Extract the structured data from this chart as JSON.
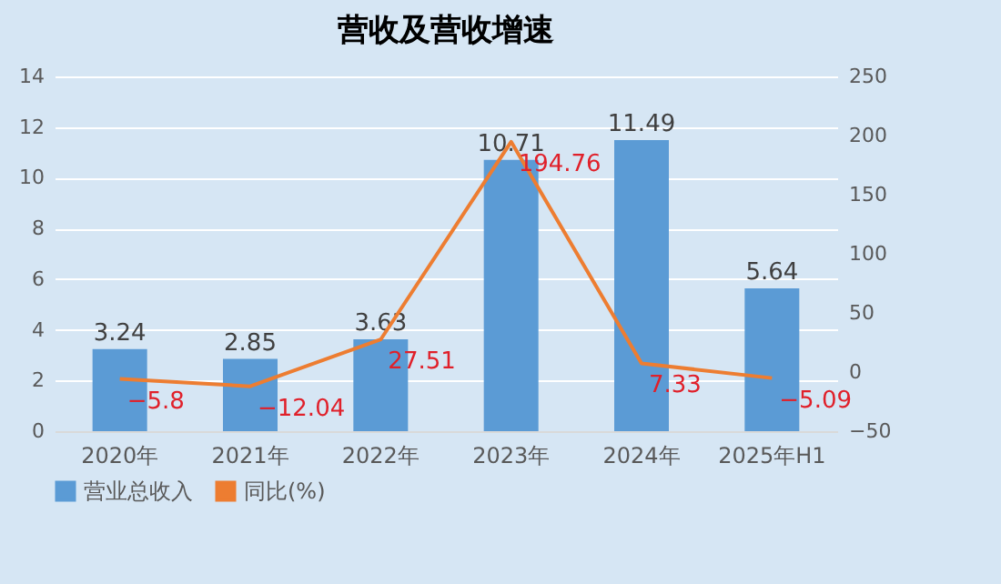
{
  "chart_data": {
    "type": "bar",
    "title": "营收及营收增速",
    "categories": [
      "2020年",
      "2021年",
      "2022年",
      "2023年",
      "2024年",
      "2025年H1"
    ],
    "series": [
      {
        "name": "营业总收入",
        "color": "#5b9bd5",
        "values": [
          3.24,
          2.85,
          3.63,
          10.71,
          11.49,
          5.64
        ]
      },
      {
        "name": "同比(%)",
        "type": "line",
        "axis": "y2",
        "color": "#ed7d31",
        "values": [
          -5.8,
          -12.04,
          27.51,
          194.76,
          7.33,
          -5.09
        ]
      }
    ],
    "ylim": [
      0,
      14
    ],
    "yticks": [
      0,
      2,
      4,
      6,
      8,
      10,
      12,
      14
    ],
    "y2lim": [
      -50,
      250
    ],
    "y2ticks": [
      -50,
      0,
      50,
      100,
      150,
      200,
      250
    ],
    "grid": "y",
    "legend": "bottom",
    "data_labels": true,
    "marker": "none"
  }
}
